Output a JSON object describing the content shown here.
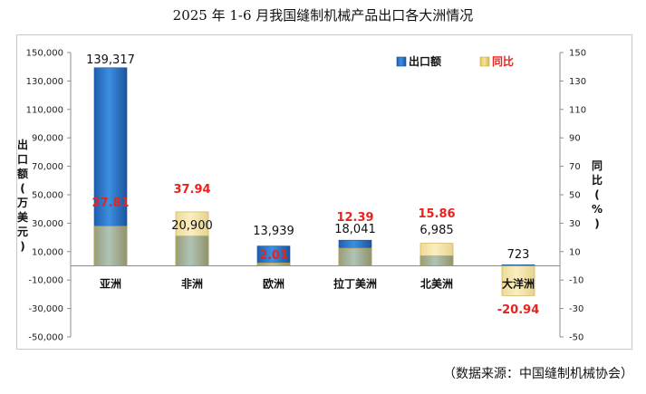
{
  "title": "2025 年 1-6 月我国缝制机械产品出口各大洲情况",
  "source": "（数据来源：中国缝制机械协会）",
  "chart_data": {
    "type": "bar",
    "title": "2025 年 1-6 月我国缝制机械产品出口各大洲情况",
    "categories": [
      "亚洲",
      "非洲",
      "欧洲",
      "拉丁美洲",
      "北美洲",
      "大洋洲"
    ],
    "series": [
      {
        "name": "出口额",
        "axis": "left",
        "color": "#2f78c8",
        "values": [
          139317,
          20900,
          13939,
          18041,
          6985,
          723
        ],
        "labels": [
          "139,317",
          "20,900",
          "13,939",
          "18,041",
          "6,985",
          "723"
        ]
      },
      {
        "name": "同比",
        "axis": "right",
        "color": "#e9cf6a",
        "values": [
          27.81,
          37.94,
          2.01,
          12.39,
          15.86,
          -20.94
        ],
        "labels": [
          "27.81",
          "37.94",
          "2.01",
          "12.39",
          "15.86",
          "-20.94"
        ]
      }
    ],
    "ylabel_left": "出口额（万美元）",
    "ylabel_right": "同比（%）",
    "ylim_left": [
      -50000,
      150000
    ],
    "ylim_right": [
      -50,
      150
    ],
    "yticks_left": [
      "150,000",
      "130,000",
      "110,000",
      "90,000",
      "70,000",
      "50,000",
      "30,000",
      "10,000",
      "-10,000",
      "-30,000",
      "-50,000"
    ],
    "yticks_right": [
      "150",
      "130",
      "110",
      "90",
      "70",
      "50",
      "30",
      "10",
      "-10",
      "-30",
      "-50"
    ],
    "legend": [
      "出口额",
      "同比"
    ],
    "legend_position": "top-right",
    "grid": false
  }
}
